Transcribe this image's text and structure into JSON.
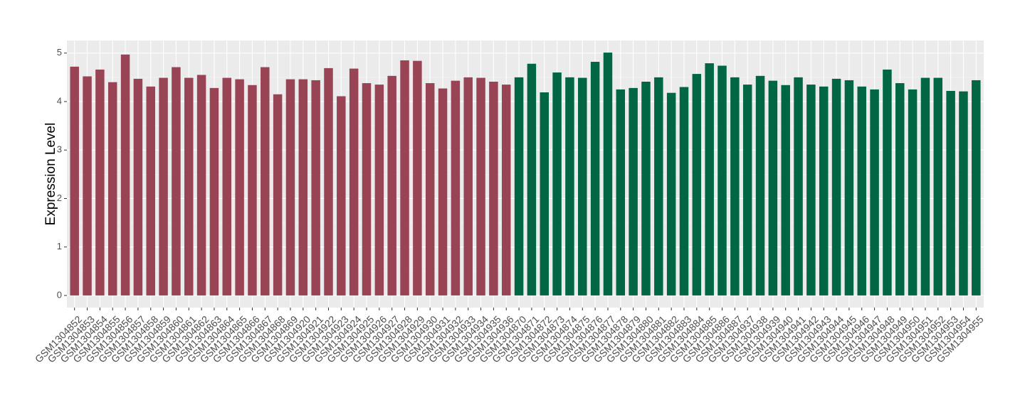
{
  "chart_data": {
    "type": "bar",
    "y_label": "Expression Level",
    "categories": [
      "GSM1304852",
      "GSM1304853",
      "GSM1304854",
      "GSM1304855",
      "GSM1304856",
      "GSM1304857",
      "GSM1304858",
      "GSM1304859",
      "GSM1304860",
      "GSM1304861",
      "GSM1304862",
      "GSM1304863",
      "GSM1304864",
      "GSM1304865",
      "GSM1304866",
      "GSM1304867",
      "GSM1304868",
      "GSM1304869",
      "GSM1304920",
      "GSM1304921",
      "GSM1304922",
      "GSM1304923",
      "GSM1304924",
      "GSM1304925",
      "GSM1304926",
      "GSM1304927",
      "GSM1304928",
      "GSM1304929",
      "GSM1304930",
      "GSM1304931",
      "GSM1304932",
      "GSM1304933",
      "GSM1304934",
      "GSM1304935",
      "GSM1304936",
      "GSM1304870",
      "GSM1304871",
      "GSM1304872",
      "GSM1304873",
      "GSM1304874",
      "GSM1304875",
      "GSM1304876",
      "GSM1304877",
      "GSM1304878",
      "GSM1304879",
      "GSM1304880",
      "GSM1304881",
      "GSM1304882",
      "GSM1304883",
      "GSM1304884",
      "GSM1304885",
      "GSM1304886",
      "GSM1304887",
      "GSM1304937",
      "GSM1304938",
      "GSM1304939",
      "GSM1304940",
      "GSM1304941",
      "GSM1304942",
      "GSM1304943",
      "GSM1304944",
      "GSM1304945",
      "GSM1304946",
      "GSM1304947",
      "GSM1304948",
      "GSM1304949",
      "GSM1304950",
      "GSM1304951",
      "GSM1304952",
      "GSM1304953",
      "GSM1304954",
      "GSM1304955"
    ],
    "values": [
      4.72,
      4.52,
      4.66,
      4.4,
      4.97,
      4.47,
      4.31,
      4.49,
      4.71,
      4.49,
      4.55,
      4.28,
      4.49,
      4.46,
      4.34,
      4.71,
      4.15,
      4.46,
      4.46,
      4.44,
      4.69,
      4.11,
      4.68,
      4.38,
      4.35,
      4.53,
      4.85,
      4.84,
      4.38,
      4.27,
      4.43,
      4.5,
      4.49,
      4.41,
      4.35,
      4.5,
      4.78,
      4.19,
      4.6,
      4.5,
      4.49,
      4.82,
      5.01,
      4.25,
      4.28,
      4.41,
      4.5,
      4.18,
      4.3,
      4.57,
      4.79,
      4.74,
      4.5,
      4.35,
      4.53,
      4.43,
      4.34,
      4.5,
      4.35,
      4.31,
      4.47,
      4.44,
      4.31,
      4.25,
      4.66,
      4.38,
      4.25,
      4.49,
      4.49,
      4.22,
      4.21,
      4.44
    ],
    "colors": [
      "#994455",
      "#994455",
      "#994455",
      "#994455",
      "#994455",
      "#994455",
      "#994455",
      "#994455",
      "#994455",
      "#994455",
      "#994455",
      "#994455",
      "#994455",
      "#994455",
      "#994455",
      "#994455",
      "#994455",
      "#994455",
      "#994455",
      "#994455",
      "#994455",
      "#994455",
      "#994455",
      "#994455",
      "#994455",
      "#994455",
      "#994455",
      "#994455",
      "#994455",
      "#994455",
      "#994455",
      "#994455",
      "#994455",
      "#994455",
      "#994455",
      "#006644",
      "#006644",
      "#006644",
      "#006644",
      "#006644",
      "#006644",
      "#006644",
      "#006644",
      "#006644",
      "#006644",
      "#006644",
      "#006644",
      "#006644",
      "#006644",
      "#006644",
      "#006644",
      "#006644",
      "#006644",
      "#006644",
      "#006644",
      "#006644",
      "#006644",
      "#006644",
      "#006644",
      "#006644",
      "#006644",
      "#006644",
      "#006644",
      "#006644",
      "#006644",
      "#006644",
      "#006644",
      "#006644",
      "#006644",
      "#006644",
      "#006644",
      "#006644"
    ],
    "ylim": [
      -0.25,
      5.26
    ],
    "yticks": [
      0,
      1,
      2,
      3,
      4,
      5
    ],
    "grid": true
  }
}
